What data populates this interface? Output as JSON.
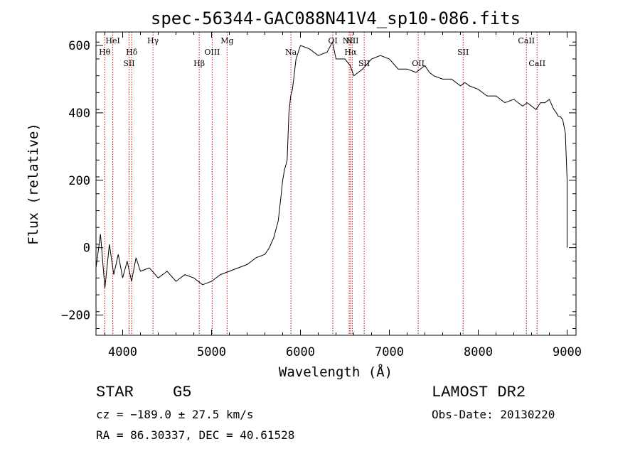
{
  "chart_data": {
    "type": "line",
    "title": "spec-56344-GAC088N41V4_sp10-086.fits",
    "xlabel": "Wavelength (Å)",
    "ylabel": "Flux (relative)",
    "xlim": [
      3700,
      9100
    ],
    "ylim": [
      -260,
      640
    ],
    "xticks": [
      4000,
      5000,
      6000,
      7000,
      8000,
      9000
    ],
    "yticks": [
      -200,
      0,
      200,
      400,
      600
    ],
    "series": [
      {
        "x": [
          3700,
          3750,
          3800,
          3850,
          3900,
          3950,
          4000,
          4050,
          4100,
          4150,
          4200,
          4300,
          4400,
          4500,
          4600,
          4700,
          4800,
          4900,
          5000,
          5100,
          5200,
          5300,
          5400,
          5500,
          5600,
          5650,
          5700,
          5750,
          5780,
          5800,
          5820,
          5850,
          5870,
          5890,
          5910,
          5950,
          6000,
          6100,
          6200,
          6300,
          6360,
          6400,
          6500,
          6560,
          6600,
          6700,
          6800,
          6900,
          7000,
          7100,
          7200,
          7300,
          7400,
          7450,
          7500,
          7600,
          7700,
          7800,
          7850,
          7900,
          8000,
          8100,
          8200,
          8300,
          8400,
          8500,
          8550,
          8600,
          8650,
          8700,
          8750,
          8800,
          8850,
          8880,
          8900,
          8920,
          8950,
          8980,
          9000,
          9000
        ],
        "y": [
          -60,
          40,
          -120,
          10,
          -80,
          -20,
          -90,
          -40,
          -100,
          -30,
          -70,
          -60,
          -90,
          -70,
          -100,
          -80,
          -90,
          -110,
          -100,
          -80,
          -70,
          -60,
          -50,
          -30,
          -20,
          0,
          30,
          80,
          150,
          200,
          230,
          260,
          400,
          450,
          470,
          560,
          600,
          590,
          570,
          580,
          610,
          560,
          560,
          540,
          510,
          530,
          560,
          570,
          560,
          530,
          530,
          520,
          540,
          520,
          510,
          500,
          500,
          480,
          490,
          480,
          470,
          450,
          450,
          430,
          440,
          420,
          430,
          420,
          410,
          430,
          430,
          440,
          410,
          400,
          390,
          390,
          380,
          340,
          200,
          0
        ]
      }
    ],
    "lines": [
      {
        "label": "Hθ",
        "x": 3798,
        "row": 2
      },
      {
        "label": "HeI",
        "x": 3889,
        "row": 1
      },
      {
        "label": "SII",
        "x": 4072,
        "row": 3
      },
      {
        "label": "Hδ",
        "x": 4102,
        "row": 2
      },
      {
        "label": "Hγ",
        "x": 4341,
        "row": 1
      },
      {
        "label": "Hβ",
        "x": 4861,
        "row": 3
      },
      {
        "label": "OIII",
        "x": 5007,
        "row": 2
      },
      {
        "label": "Mg",
        "x": 5175,
        "row": 1
      },
      {
        "label": "Na",
        "x": 5893,
        "row": 2
      },
      {
        "label": "OI",
        "x": 6364,
        "row": 1
      },
      {
        "label": "NII",
        "x": 6548,
        "row": 1
      },
      {
        "label": "Hα",
        "x": 6563,
        "row": 2
      },
      {
        "label": "NII",
        "x": 6583,
        "row": 1
      },
      {
        "label": "SII",
        "x": 6717,
        "row": 3
      },
      {
        "label": "OII",
        "x": 7325,
        "row": 3
      },
      {
        "label": "SII",
        "x": 7830,
        "row": 2
      },
      {
        "label": "CaII",
        "x": 8542,
        "row": 1
      },
      {
        "label": "CaII",
        "x": 8662,
        "row": 3
      }
    ],
    "grid": false,
    "colors": {
      "spectrum": "#000000",
      "lines": "#cc0000"
    }
  },
  "footer": {
    "object_class": "STAR",
    "subclass": "G5",
    "survey": "LAMOST DR2",
    "redshift": "cz = −189.0 ± 27.5 km/s",
    "obs_date": "Obs-Date: 20130220",
    "coords": "RA =  86.30337, DEC =  40.61528"
  }
}
